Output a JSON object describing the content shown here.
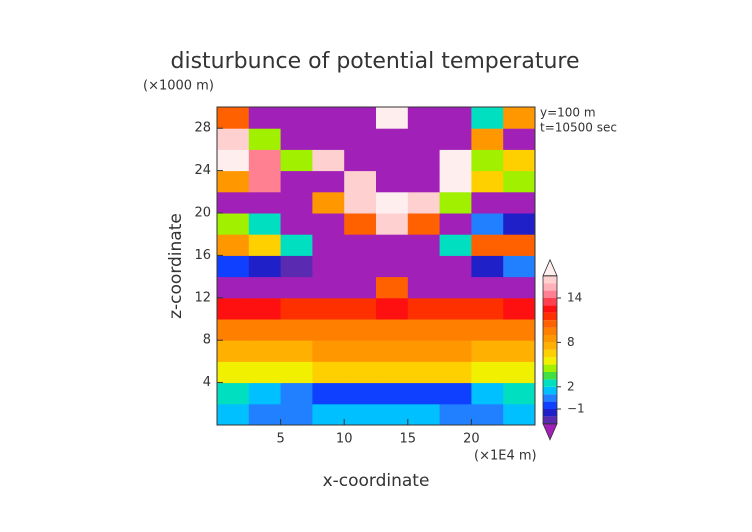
{
  "chart_data": {
    "type": "heatmap",
    "title": "disturbunce of potential temperature",
    "y_unit": "(×1000 m)",
    "x_unit": "(×1E4 m)",
    "annotations": [
      "y=100 m",
      "t=10500 sec"
    ],
    "xlabel": "x-coordinate",
    "ylabel": "z-coordinate",
    "xlim": [
      0,
      25
    ],
    "ylim": [
      0,
      30
    ],
    "xticks": [
      5,
      10,
      15,
      20
    ],
    "yticks": [
      4,
      8,
      12,
      16,
      20,
      24,
      28
    ],
    "x": [
      1.25,
      3.75,
      6.25,
      8.75,
      11.25,
      13.75,
      16.25,
      18.75,
      21.25,
      23.75
    ],
    "y": [
      1,
      3,
      5,
      7,
      9,
      11,
      13,
      15,
      17,
      19,
      21,
      23,
      25,
      27,
      29
    ],
    "values": [
      [
        1,
        0,
        0,
        1,
        1,
        1,
        1,
        0,
        0,
        1
      ],
      [
        2,
        1,
        0,
        -1,
        -1,
        -1,
        -1,
        -1,
        1,
        2
      ],
      [
        5,
        5,
        5,
        6,
        6,
        6,
        6,
        6,
        5,
        5
      ],
      [
        7,
        7,
        7,
        8,
        8,
        8,
        8,
        8,
        7,
        7
      ],
      [
        9,
        9,
        9,
        9,
        9,
        9,
        9,
        9,
        9,
        9
      ],
      [
        12,
        12,
        11,
        11,
        11,
        12,
        11,
        11,
        11,
        12
      ],
      [
        -4,
        -4,
        -4,
        -4,
        -4,
        10,
        -4,
        -4,
        -4,
        -4
      ],
      [
        -1,
        -2,
        -3,
        -4,
        -4,
        -4,
        -4,
        -4,
        -2,
        0
      ],
      [
        8,
        6,
        2,
        -4,
        -4,
        -4,
        -4,
        2,
        10,
        10
      ],
      [
        4,
        2,
        -4,
        -4,
        10,
        16,
        10,
        -4,
        0,
        -2
      ],
      [
        -4,
        -4,
        -4,
        8,
        16,
        18,
        16,
        4,
        -4,
        -4
      ],
      [
        8,
        14,
        -4,
        -4,
        16,
        -4,
        -4,
        18,
        6,
        4
      ],
      [
        18,
        14,
        4,
        16,
        -4,
        -4,
        -4,
        18,
        4,
        6
      ],
      [
        16,
        4,
        -4,
        -4,
        -4,
        -4,
        -4,
        -4,
        8,
        -4
      ],
      [
        10,
        -4,
        -4,
        -4,
        -4,
        17,
        -4,
        -4,
        2,
        8
      ]
    ],
    "colorbar": {
      "boundaries": [
        -3,
        -2,
        -1,
        0,
        1,
        2,
        3,
        4,
        5,
        6,
        7,
        8,
        9,
        10,
        11,
        12,
        13,
        14,
        15,
        16,
        17
      ],
      "colors": [
        "#5a2ab0",
        "#2020c8",
        "#1040ff",
        "#2080ff",
        "#00c0ff",
        "#00e0c0",
        "#40e040",
        "#a0f000",
        "#f0f000",
        "#ffd000",
        "#ffb000",
        "#ff9800",
        "#ff8000",
        "#ff6000",
        "#ff3000",
        "#ff1010",
        "#ff4050",
        "#ff8090",
        "#ffb0b8",
        "#ffd0d0"
      ],
      "under_color": "#a020b8",
      "over_color": "#ffeeee",
      "ticks": [
        {
          "value": -1,
          "label": "−1"
        },
        2,
        8,
        14
      ]
    }
  }
}
